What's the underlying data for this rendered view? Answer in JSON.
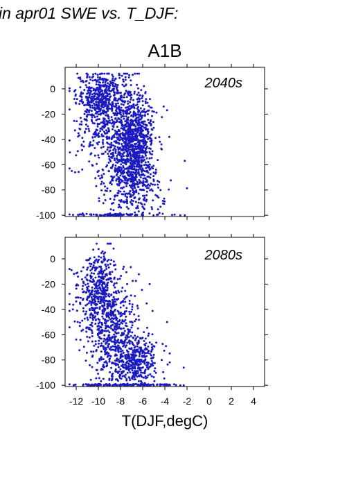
{
  "header": {
    "text": "in apr01 SWE vs. T_DJF:"
  },
  "colors": {
    "points": "#1a1ac0",
    "label": "#1a1ac0",
    "axis": "#000000"
  },
  "chart_data": [
    {
      "type": "scatter",
      "title": "A1B",
      "annotation": "2040s",
      "xlabel": "",
      "ylabel": "",
      "xlim": [
        -13,
        5
      ],
      "ylim": [
        -101,
        17
      ],
      "xticks": [
        -12,
        -10,
        -8,
        -6,
        -4,
        -2,
        0,
        2,
        4
      ],
      "yticks": [
        0,
        -20,
        -40,
        -60,
        -80,
        -100
      ],
      "ytick_labels": [
        "0",
        "-20",
        "-40",
        "-60",
        "-80",
        "-100"
      ],
      "show_xtick_labels": false,
      "grid": false,
      "series": [
        {
          "clusters": [
            {
              "cx": -9.6,
              "cy": -5,
              "sx": 1.2,
              "sy": 9,
              "n": 420
            },
            {
              "cx": -6.7,
              "cy": -45,
              "sx": 0.9,
              "sy": 20,
              "n": 950
            },
            {
              "cx": -9.2,
              "cy": -30,
              "sx": 1.4,
              "sy": 14,
              "n": 330
            },
            {
              "cx": -8.2,
              "cy": -68,
              "sx": 1.1,
              "sy": 13,
              "n": 170
            },
            {
              "cx": -6.3,
              "cy": -85,
              "sx": 1.3,
              "sy": 9,
              "n": 90
            },
            {
              "cx": -8.6,
              "cy": -99.5,
              "sx": 1.6,
              "sy": 0.4,
              "n": 80
            }
          ],
          "extra_points": [
            [
              -12.4,
              -65
            ],
            [
              -12.1,
              -66
            ],
            [
              -11.8,
              -100
            ],
            [
              -11.3,
              -100
            ],
            [
              -3.8,
              -17
            ],
            [
              -4.1,
              -14
            ],
            [
              -3.6,
              -38
            ],
            [
              -2.2,
              -57
            ],
            [
              -2.2,
              -100
            ],
            [
              -2.6,
              -100
            ],
            [
              -6.9,
              11
            ],
            [
              -6.5,
              12
            ],
            [
              -7.4,
              12
            ]
          ]
        }
      ]
    },
    {
      "type": "scatter",
      "title": "",
      "annotation": "2080s",
      "xlabel": "T(DJF,degC)",
      "ylabel": "",
      "xlim": [
        -13,
        5
      ],
      "ylim": [
        -101,
        17
      ],
      "xticks": [
        -12,
        -10,
        -8,
        -6,
        -4,
        -2,
        0,
        2,
        4
      ],
      "xtick_labels": [
        "-12",
        "-10",
        "-8",
        "-6",
        "-4",
        "-2",
        "0",
        "2",
        "4"
      ],
      "yticks": [
        0,
        -20,
        -40,
        -60,
        -80,
        -100
      ],
      "ytick_labels": [
        "0",
        "-20",
        "-40",
        "-60",
        "-80",
        "-100"
      ],
      "show_xtick_labels": true,
      "grid": false,
      "series": [
        {
          "clusters": [
            {
              "cx": -10.0,
              "cy": -22,
              "sx": 0.9,
              "sy": 14,
              "n": 380
            },
            {
              "cx": -8.9,
              "cy": -58,
              "sx": 1.3,
              "sy": 18,
              "n": 560
            },
            {
              "cx": -6.6,
              "cy": -82,
              "sx": 1.1,
              "sy": 10,
              "n": 380
            },
            {
              "cx": -8.0,
              "cy": -99.6,
              "sx": 2.2,
              "sy": 0.3,
              "n": 140
            }
          ],
          "extra_points": [
            [
              -12.6,
              -8
            ],
            [
              -12.2,
              -12
            ],
            [
              -12.3,
              -40
            ],
            [
              -3.8,
              -50
            ],
            [
              -3.9,
              -69
            ],
            [
              -2.3,
              -86
            ],
            [
              -2.3,
              -100
            ],
            [
              -2.6,
              -100
            ],
            [
              -9.5,
              4
            ],
            [
              -9.4,
              5
            ],
            [
              -7.4,
              -20
            ]
          ]
        }
      ]
    }
  ]
}
